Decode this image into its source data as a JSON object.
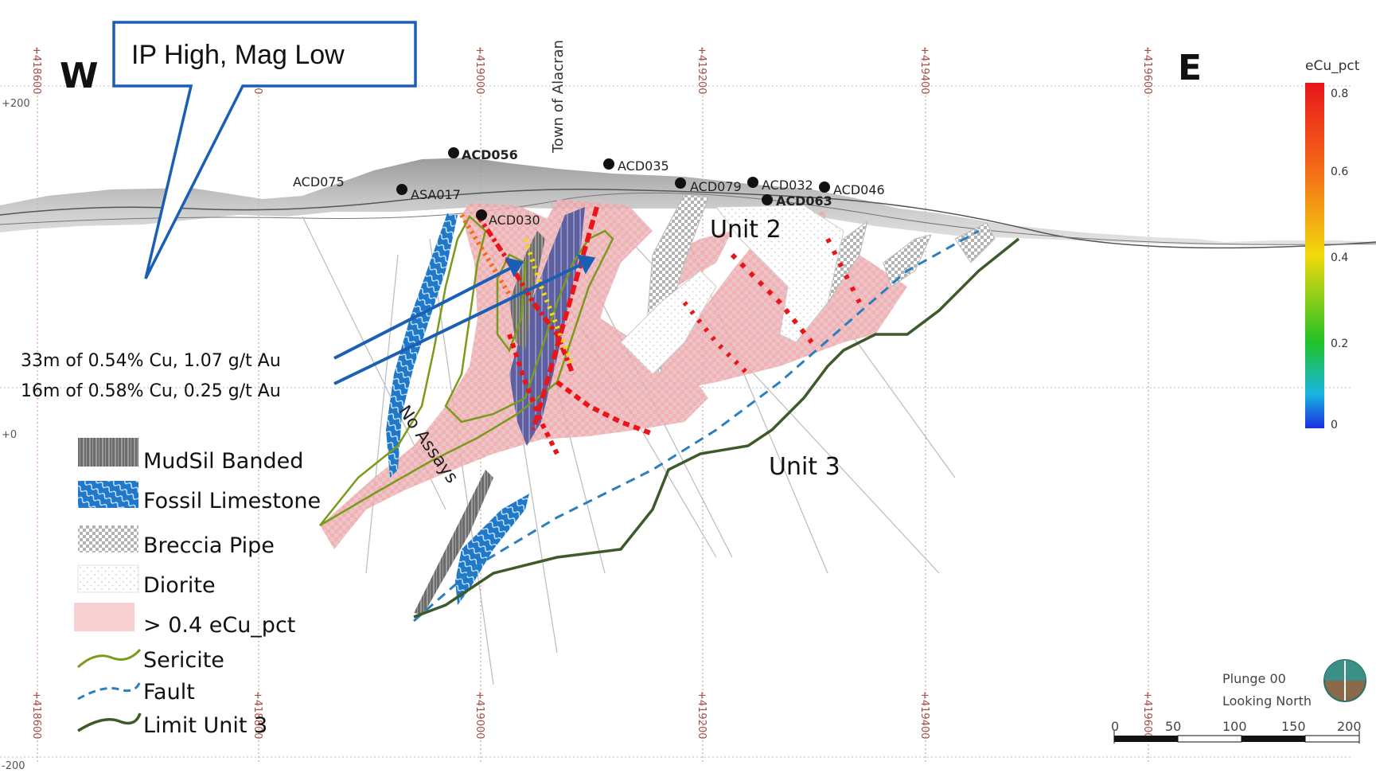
{
  "directions": {
    "west": "W",
    "east": "E"
  },
  "callout": {
    "label": "IP High, Mag Low"
  },
  "town_label": "Town of Alacran",
  "easting_labels": [
    "+418600",
    "+418800",
    "+419000",
    "+419200",
    "+419400",
    "+419600"
  ],
  "elevation_labels": {
    "top": "+200",
    "mid": "+0",
    "bottom": "-200"
  },
  "drill_holes": [
    "ACD075",
    "ASA017",
    "ACD056",
    "ACD030",
    "ACD035",
    "ACD079",
    "ACD032",
    "ACD063",
    "ACD046"
  ],
  "units": {
    "unit2": "Unit 2",
    "unit3": "Unit 3"
  },
  "no_assays": "No Assays",
  "intercepts": [
    "33m of 0.54% Cu, 1.07 g/t Au",
    "16m of 0.58% Cu, 0.25 g/t Au"
  ],
  "legend": {
    "items": [
      {
        "label": "MudSil Banded"
      },
      {
        "label": "Fossil Limestone"
      },
      {
        "label": "Breccia Pipe"
      },
      {
        "label": "Diorite"
      },
      {
        "label": "> 0.4 eCu_pct"
      },
      {
        "label": "Sericite"
      },
      {
        "label": "Fault"
      },
      {
        "label": "Limit Unit 3"
      }
    ]
  },
  "colorbar": {
    "title": "eCu_pct",
    "ticks": [
      "0.8",
      "0.6",
      "0.4",
      "0.2",
      "0"
    ]
  },
  "view_info": {
    "plunge": "Plunge 00",
    "looking": "Looking North"
  },
  "scale_bar": {
    "ticks": [
      "0",
      "50",
      "100",
      "150",
      "200"
    ]
  },
  "colors": {
    "ore_zone": "#f4a6a6",
    "fossil_limestone": "#1f78c8",
    "mudsil": "#6b6b6b",
    "sericite": "#7a9a1c",
    "fault": "#2a7fc0",
    "limit_unit3": "#3d5a2a",
    "callout_border": "#1a5fb4",
    "grid_line": "#c98c86"
  }
}
